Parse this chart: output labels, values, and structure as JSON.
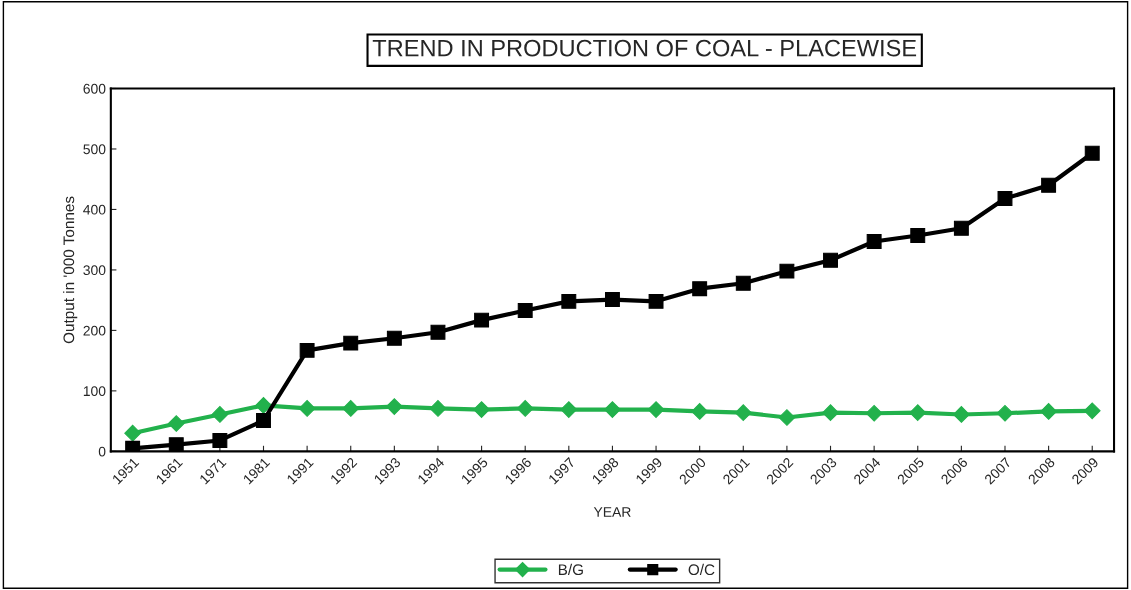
{
  "chart_data": {
    "type": "line",
    "title": "TREND IN PRODUCTION OF COAL - PLACEWISE",
    "xlabel": "YEAR",
    "ylabel": "Output in '000 Tonnes",
    "categories": [
      "1951",
      "1961",
      "1971",
      "1981",
      "1991",
      "1992",
      "1993",
      "1994",
      "1995",
      "1996",
      "1997",
      "1998",
      "1999",
      "2000",
      "2001",
      "2002",
      "2003",
      "2004",
      "2005",
      "2006",
      "2007",
      "2008",
      "2009"
    ],
    "series": [
      {
        "name": "B/G",
        "color": "#22b14c",
        "marker": "diamond",
        "values": [
          30,
          46,
          61,
          76,
          71,
          71,
          74,
          71,
          69,
          71,
          69,
          69,
          69,
          66,
          64,
          56,
          64,
          63,
          64,
          61,
          63,
          66,
          67
        ]
      },
      {
        "name": "O/C",
        "color": "#000000",
        "marker": "square",
        "values": [
          5,
          11,
          18,
          51,
          167,
          179,
          187,
          197,
          217,
          233,
          248,
          251,
          248,
          269,
          278,
          298,
          316,
          347,
          357,
          369,
          418,
          440,
          493
        ]
      }
    ],
    "ylim": [
      0,
      600
    ],
    "yticks": [
      0,
      100,
      200,
      300,
      400,
      500,
      600
    ],
    "grid": false,
    "legend": "bottom",
    "line_style": "solid"
  }
}
